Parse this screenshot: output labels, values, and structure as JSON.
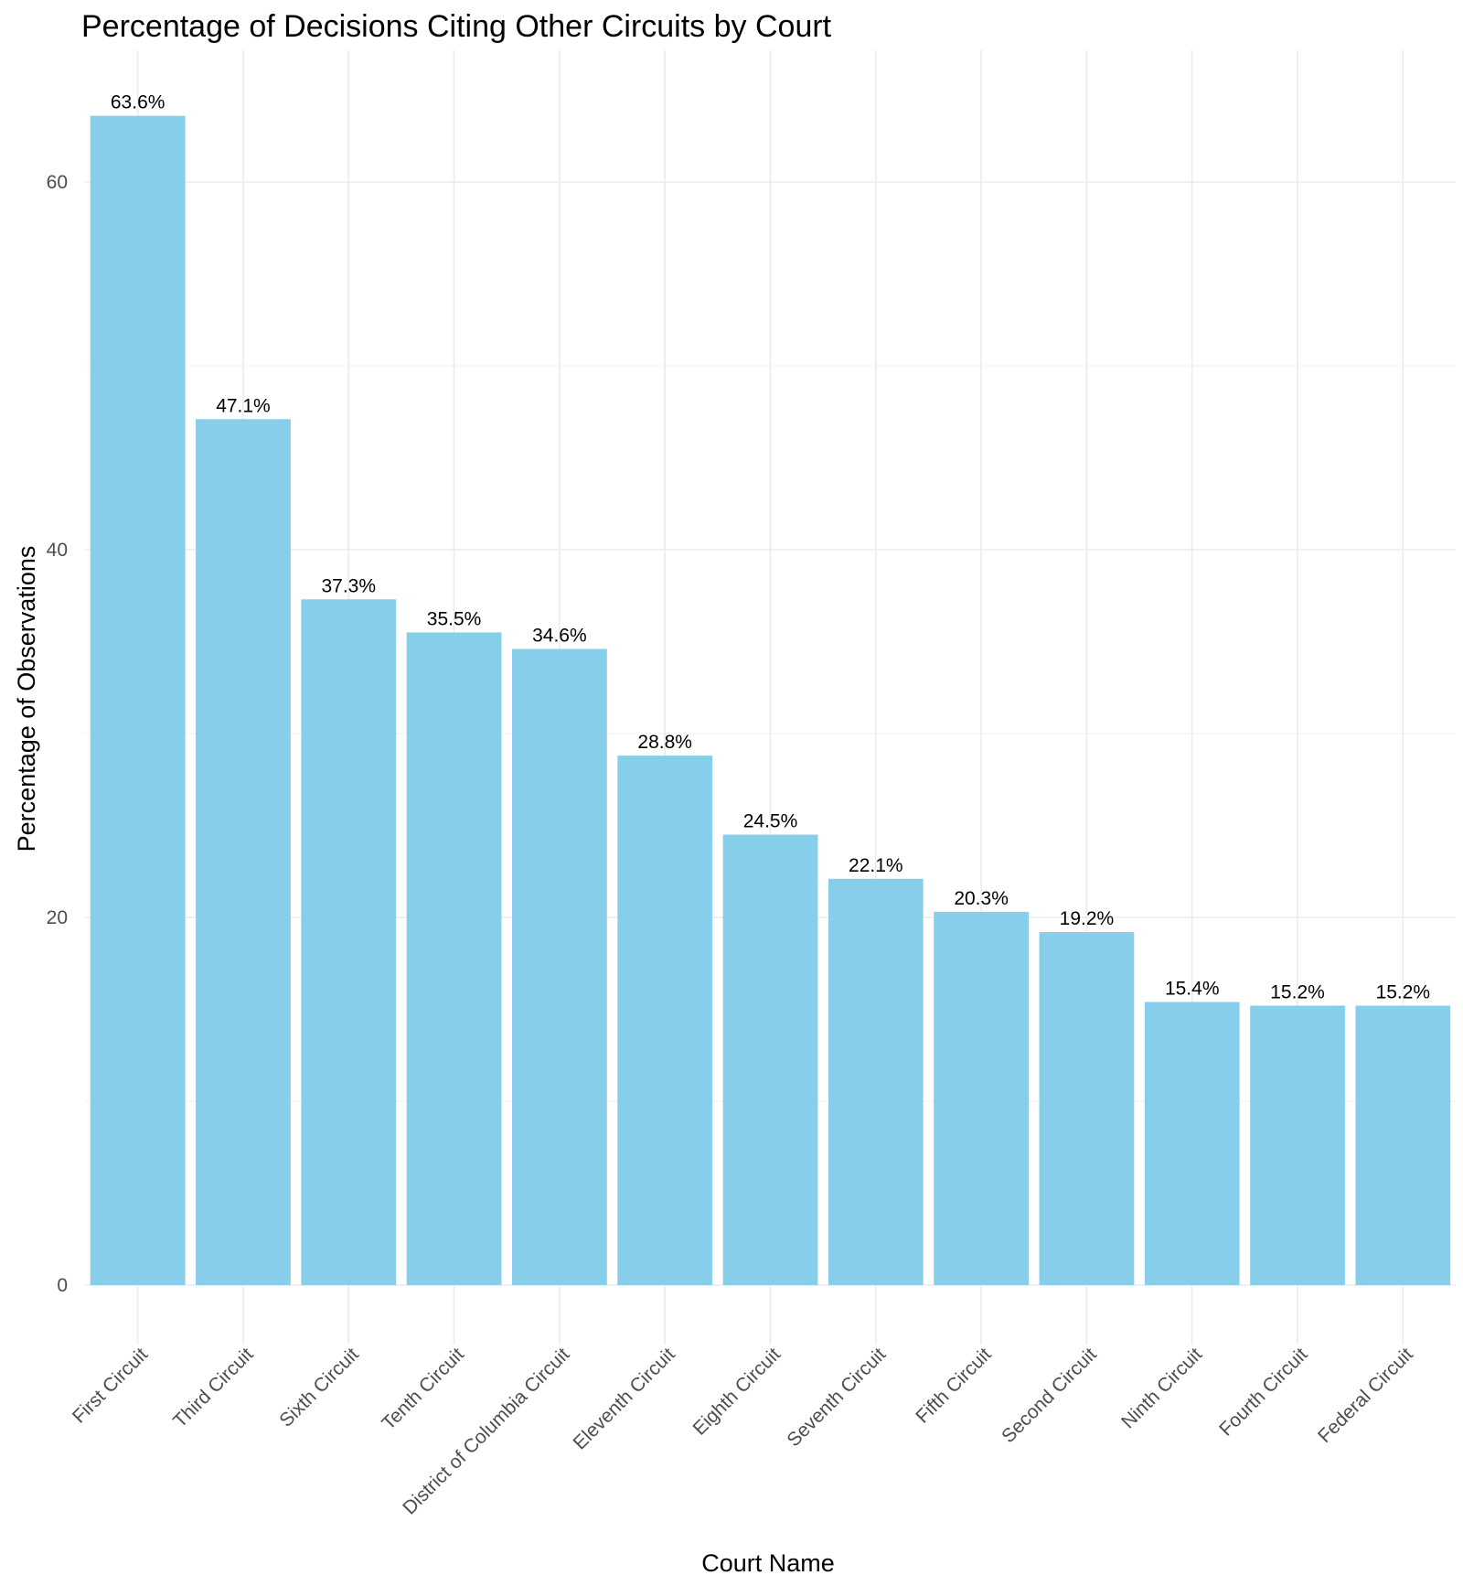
{
  "chart_data": {
    "type": "bar",
    "title": "Percentage of Decisions Citing Other Circuits by Court",
    "xlabel": "Court Name",
    "ylabel": "Percentage of Observations",
    "categories": [
      "First Circuit",
      "Third Circuit",
      "Sixth Circuit",
      "Tenth Circuit",
      "District of Columbia Circuit",
      "Eleventh Circuit",
      "Eighth Circuit",
      "Seventh Circuit",
      "Fifth Circuit",
      "Second Circuit",
      "Ninth Circuit",
      "Fourth Circuit",
      "Federal Circuit"
    ],
    "values": [
      63.6,
      47.1,
      37.3,
      35.5,
      34.6,
      28.8,
      24.5,
      22.1,
      20.3,
      19.2,
      15.4,
      15.2,
      15.2
    ],
    "labels": [
      "63.6%",
      "47.1%",
      "37.3%",
      "35.5%",
      "34.6%",
      "28.8%",
      "24.5%",
      "22.1%",
      "20.3%",
      "19.2%",
      "15.4%",
      "15.2%",
      "15.2%"
    ],
    "y_ticks": [
      0,
      20,
      40,
      60
    ],
    "y_tick_labels": [
      "0",
      "20",
      "40",
      "60"
    ],
    "ylim": [
      0,
      67
    ],
    "grid": true,
    "bar_color": "#87CEEB"
  }
}
